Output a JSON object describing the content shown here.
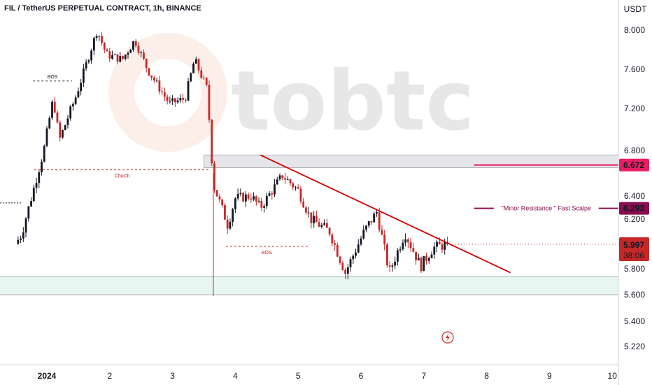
{
  "header": {
    "title": "FIL / TetherUS PERPETUAL CONTRACT, 1h, BINANCE",
    "currency": "USDT"
  },
  "watermark": {
    "text": "tobtc"
  },
  "colors": {
    "bull": "#131722",
    "bear": "#c62828",
    "trendline": "#d50000",
    "level_magenta": "#e91e63",
    "level_maroon": "#880e4f",
    "supply_zone": "#e6e6ea",
    "demand_zone": "#e8f6f1"
  },
  "chart_data": {
    "type": "candlestick",
    "title": "FIL / TetherUS PERPETUAL CONTRACT, 1h, BINANCE",
    "ylabel": "USDT",
    "ylim": [
      5.0,
      8.15
    ],
    "x_ticks": [
      {
        "label": "2024",
        "day": 1
      },
      {
        "label": "2",
        "day": 2
      },
      {
        "label": "3",
        "day": 3
      },
      {
        "label": "4",
        "day": 4
      },
      {
        "label": "5",
        "day": 5
      },
      {
        "label": "6",
        "day": 6
      },
      {
        "label": "7",
        "day": 7
      },
      {
        "label": "8",
        "day": 8
      },
      {
        "label": "9",
        "day": 9
      },
      {
        "label": "10",
        "day": 10
      }
    ],
    "y_ticks": [
      {
        "label": "8.000",
        "value": 8.0
      },
      {
        "label": "7.600",
        "value": 7.6
      },
      {
        "label": "7.200",
        "value": 7.2
      },
      {
        "label": "6.800",
        "value": 6.8
      },
      {
        "label": "6.400",
        "value": 6.4
      },
      {
        "label": "6.200",
        "value": 6.2
      },
      {
        "label": "5.800",
        "value": 5.8
      },
      {
        "label": "5.600",
        "value": 5.6
      },
      {
        "label": "5.400",
        "value": 5.4
      },
      {
        "label": "5.220",
        "value": 5.22
      }
    ],
    "price_path": [
      {
        "day": 0.5,
        "price": 6.0
      },
      {
        "day": 0.6,
        "price": 6.08
      },
      {
        "day": 0.75,
        "price": 6.38
      },
      {
        "day": 0.95,
        "price": 6.8
      },
      {
        "day": 1.1,
        "price": 7.3
      },
      {
        "day": 1.2,
        "price": 6.9
      },
      {
        "day": 1.45,
        "price": 7.3
      },
      {
        "day": 1.65,
        "price": 7.7
      },
      {
        "day": 1.8,
        "price": 8.0
      },
      {
        "day": 1.95,
        "price": 7.75
      },
      {
        "day": 2.2,
        "price": 7.7
      },
      {
        "day": 2.4,
        "price": 7.9
      },
      {
        "day": 2.6,
        "price": 7.6
      },
      {
        "day": 2.95,
        "price": 7.25
      },
      {
        "day": 3.2,
        "price": 7.3
      },
      {
        "day": 3.35,
        "price": 7.7
      },
      {
        "day": 3.55,
        "price": 7.4
      },
      {
        "day": 3.65,
        "price": 6.5
      },
      {
        "day": 3.88,
        "price": 6.15
      },
      {
        "day": 4.0,
        "price": 6.38
      },
      {
        "day": 4.25,
        "price": 6.4
      },
      {
        "day": 4.4,
        "price": 6.3
      },
      {
        "day": 4.75,
        "price": 6.58
      },
      {
        "day": 5.0,
        "price": 6.45
      },
      {
        "day": 5.2,
        "price": 6.2
      },
      {
        "day": 5.5,
        "price": 6.1
      },
      {
        "day": 5.75,
        "price": 5.77
      },
      {
        "day": 6.05,
        "price": 6.1
      },
      {
        "day": 6.25,
        "price": 6.26
      },
      {
        "day": 6.45,
        "price": 5.77
      },
      {
        "day": 6.7,
        "price": 6.09
      },
      {
        "day": 6.95,
        "price": 5.82
      },
      {
        "day": 7.15,
        "price": 5.97
      },
      {
        "day": 7.38,
        "price": 5.997
      }
    ],
    "last_price": {
      "value": 5.997,
      "label": "5.997",
      "countdown": "38:06"
    },
    "levels": [
      {
        "value": 6.672,
        "label": "6.672",
        "from_day": 7.8,
        "color": "#e91e63"
      },
      {
        "value": 6.293,
        "label": "6.293",
        "from_day": 7.8,
        "color": "#880e4f",
        "annotation": "\"Minor Resistance \" Fast Scalpe"
      }
    ],
    "zones": [
      {
        "kind": "supply",
        "low": 6.65,
        "high": 6.76,
        "from_day": 3.5
      },
      {
        "kind": "demand",
        "low": 5.6,
        "high": 5.74,
        "from_day": 0.0
      }
    ],
    "trendline": {
      "from": {
        "day": 4.4,
        "price": 6.76
      },
      "to": {
        "day": 8.38,
        "price": 5.77
      }
    },
    "annotations": [
      {
        "text": "BOS",
        "level": 7.48,
        "from_day": 0.78,
        "to_day": 1.4
      },
      {
        "text": "ChoCh",
        "level": 6.63,
        "from_day": 0.8,
        "to_day": 3.6
      },
      {
        "text": "BOS",
        "level": 5.98,
        "from_day": 3.85,
        "to_day": 5.15
      }
    ]
  }
}
